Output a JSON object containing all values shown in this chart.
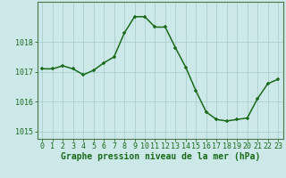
{
  "hours": [
    0,
    1,
    2,
    3,
    4,
    5,
    6,
    7,
    8,
    9,
    10,
    11,
    12,
    13,
    14,
    15,
    16,
    17,
    18,
    19,
    20,
    21,
    22,
    23
  ],
  "pressure": [
    1017.1,
    1017.1,
    1017.2,
    1017.1,
    1016.9,
    1017.05,
    1017.3,
    1017.5,
    1018.3,
    1018.85,
    1018.85,
    1018.5,
    1018.5,
    1017.8,
    1017.15,
    1016.35,
    1015.65,
    1015.4,
    1015.35,
    1015.4,
    1015.45,
    1016.1,
    1016.6,
    1016.75
  ],
  "line_color": "#1a6b1a",
  "marker_color": "#1a6b1a",
  "bg_color": "#cce8e8",
  "grid_color": "#aacece",
  "axis_color": "#4a7a4a",
  "tick_label_color": "#1a6b1a",
  "xlabel": "Graphe pression niveau de la mer (hPa)",
  "ylim": [
    1014.75,
    1019.35
  ],
  "yticks": [
    1015,
    1016,
    1017,
    1018
  ],
  "xticks": [
    0,
    1,
    2,
    3,
    4,
    5,
    6,
    7,
    8,
    9,
    10,
    11,
    12,
    13,
    14,
    15,
    16,
    17,
    18,
    19,
    20,
    21,
    22,
    23
  ],
  "xlabel_fontsize": 7.0,
  "tick_fontsize": 6.0,
  "marker_size": 3.5,
  "line_width": 1.1
}
